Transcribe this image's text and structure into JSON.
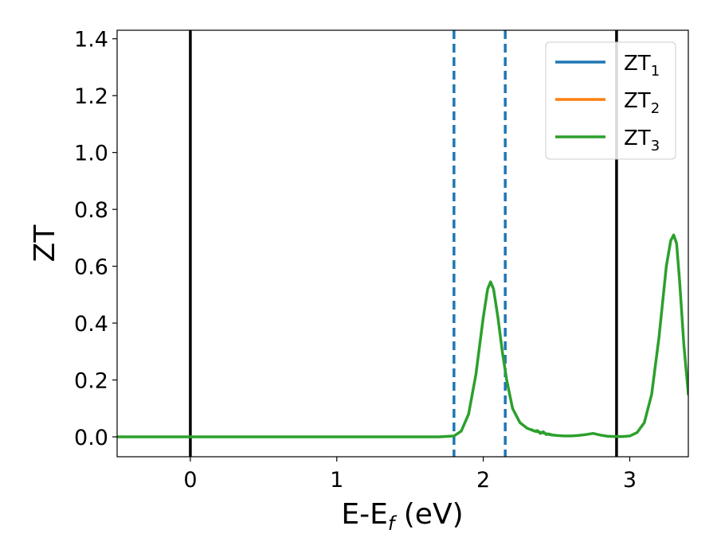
{
  "chart_data": {
    "type": "line",
    "title": "",
    "xlabel_main": "E-E",
    "xlabel_sub": "f",
    "xlabel_unit": " (eV)",
    "ylabel": "ZT",
    "xlim": [
      -0.5,
      3.4
    ],
    "ylim": [
      -0.07,
      1.43
    ],
    "xticks": [
      0,
      1,
      2,
      3
    ],
    "xtick_labels": [
      "0",
      "1",
      "2",
      "3"
    ],
    "yticks": [
      0.0,
      0.2,
      0.4,
      0.6,
      0.8,
      1.0,
      1.2,
      1.4
    ],
    "ytick_labels": [
      "0.0",
      "0.2",
      "0.4",
      "0.6",
      "0.8",
      "1.0",
      "1.2",
      "1.4"
    ],
    "grid": false,
    "legend_position": "top-right",
    "legend": [
      {
        "base": "ZT",
        "sub": "1",
        "color": "#1f77b4"
      },
      {
        "base": "ZT",
        "sub": "2",
        "color": "#ff7f0e"
      },
      {
        "base": "ZT",
        "sub": "3",
        "color": "#2ca02c"
      }
    ],
    "vlines": [
      {
        "x": 0.0,
        "style": "solid",
        "color": "#000000"
      },
      {
        "x": 2.91,
        "style": "solid",
        "color": "#000000"
      },
      {
        "x": 1.8,
        "style": "dashed",
        "color": "#1f77b4"
      },
      {
        "x": 2.15,
        "style": "dashed",
        "color": "#1f77b4"
      }
    ],
    "series": [
      {
        "color": "#2ca02c",
        "x": [
          -0.5,
          0.0,
          0.5,
          1.0,
          1.5,
          1.7,
          1.8,
          1.85,
          1.9,
          1.95,
          2.0,
          2.03,
          2.05,
          2.07,
          2.1,
          2.13,
          2.16,
          2.2,
          2.25,
          2.3,
          2.35,
          2.4,
          2.45,
          2.5,
          2.55,
          2.6,
          2.65,
          2.7,
          2.75,
          2.8,
          2.85,
          2.9,
          2.95,
          3.0,
          3.05,
          3.1,
          3.15,
          3.2,
          3.25,
          3.28,
          3.3,
          3.32,
          3.34,
          3.37,
          3.4
        ],
        "y": [
          0.0,
          0.0,
          0.0,
          0.0,
          0.0,
          0.0,
          0.003,
          0.02,
          0.08,
          0.22,
          0.42,
          0.52,
          0.545,
          0.52,
          0.42,
          0.3,
          0.2,
          0.1,
          0.05,
          0.03,
          0.02,
          0.015,
          0.008,
          0.005,
          0.003,
          0.003,
          0.005,
          0.008,
          0.012,
          0.006,
          0.002,
          0.001,
          0.001,
          0.003,
          0.015,
          0.05,
          0.15,
          0.35,
          0.6,
          0.69,
          0.71,
          0.68,
          0.55,
          0.32,
          0.15
        ]
      },
      {
        "color": "#2ca02c",
        "x": [
          2.33,
          2.35,
          2.37,
          2.39,
          2.41,
          2.43,
          2.45,
          2.47
        ],
        "y": [
          0.025,
          0.02,
          0.022,
          0.012,
          0.018,
          0.008,
          0.01,
          0.006
        ]
      }
    ]
  }
}
